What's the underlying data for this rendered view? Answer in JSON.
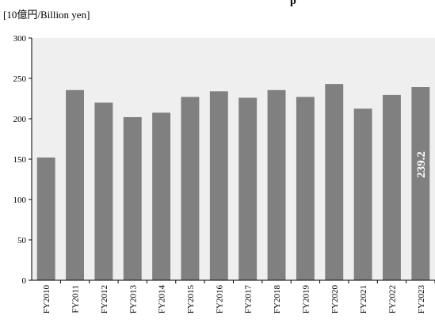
{
  "chart_data": {
    "type": "bar",
    "title_fragment": "p",
    "unit_label": "[10億円/Billion yen]",
    "categories": [
      "FY2010",
      "FY2011",
      "FY2012",
      "FY2013",
      "FY2014",
      "FY2015",
      "FY2016",
      "FY2017",
      "FY2018",
      "FY2019",
      "FY2020",
      "FY2021",
      "FY2022",
      "FY2023"
    ],
    "values": [
      152,
      235.5,
      220,
      202,
      207.5,
      227,
      234,
      226,
      235.5,
      227,
      243,
      212.5,
      229.5,
      239.2
    ],
    "data_labels": [
      {
        "index": 13,
        "text": "239.2"
      }
    ],
    "ylim": [
      0,
      300
    ],
    "yticks": [
      "0",
      "50",
      "100",
      "150",
      "200",
      "250",
      "300"
    ],
    "grid": false,
    "colors": {
      "plot_background": "#efefef",
      "bar": "#808080",
      "axis": "#000000",
      "label": "#ffffff"
    }
  }
}
